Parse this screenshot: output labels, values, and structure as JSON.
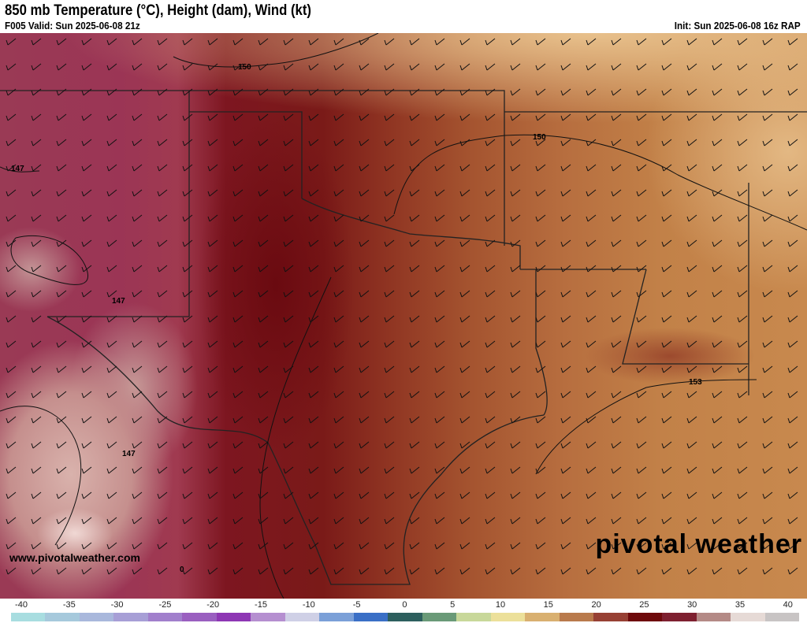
{
  "header": {
    "title": "850 mb Temperature (°C), Height (dam), Wind (kt)",
    "valid": "F005 Valid: Sun 2025-06-08 21z",
    "init": "Init: Sun 2025-06-08 16z RAP"
  },
  "contour_labels": [
    "150",
    "150",
    "147",
    "147",
    "147",
    "153",
    "0"
  ],
  "branding": {
    "logo": "pivotal weather",
    "url": "www.pivotalweather.com"
  },
  "colorbar": {
    "ticks": [
      "-40",
      "-35",
      "-30",
      "-25",
      "-20",
      "-15",
      "-10",
      "-5",
      "0",
      "5",
      "10",
      "15",
      "20",
      "25",
      "30",
      "35",
      "40"
    ],
    "colors": [
      "#a8dde0",
      "#a6c9dc",
      "#a9b8dc",
      "#a79fd6",
      "#a17fcc",
      "#9a5fc0",
      "#8e37b4",
      "#b58fd0",
      "#cfd0e6",
      "#7ba0d8",
      "#3a6fc6",
      "#2d5f5e",
      "#6a9a78",
      "#c8d89a",
      "#ece09a",
      "#d9b070",
      "#b97a4c",
      "#974034",
      "#6e0a0c",
      "#7e2030",
      "#b48a86",
      "#e6dad6",
      "#c8c4c4"
    ]
  },
  "colors": {
    "warm_core": "#6a0a10",
    "pink": "#9a3a55",
    "tan": "#c8894e"
  }
}
